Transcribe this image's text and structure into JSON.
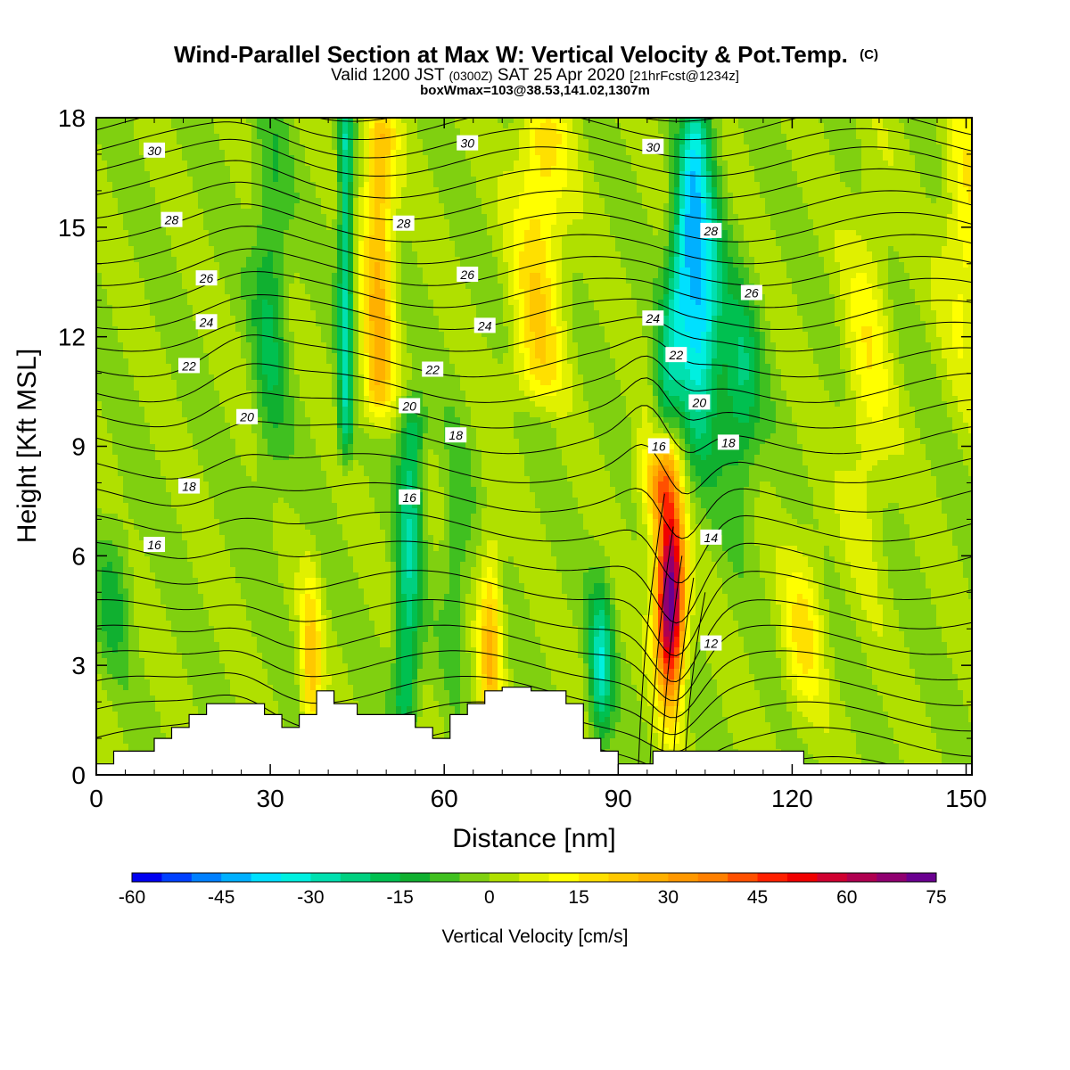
{
  "title": {
    "main": "Wind-Parallel Section at Max W: Vertical Velocity & Pot.Temp.",
    "copyright": "(C)",
    "valid_prefix": "Valid 1200 JST",
    "valid_z": "(0300Z)",
    "valid_date": "SAT 25 Apr 2020",
    "valid_fcst": "[21hrFcst@1234z]",
    "box_info": "boxWmax=103@38.53,141.02,1307m"
  },
  "chart_data": {
    "type": "heatmap",
    "xlabel": "Distance [nm]",
    "ylabel": "Height [Kft MSL]",
    "xlim": [
      0,
      151
    ],
    "ylim": [
      0,
      18
    ],
    "xticks": [
      0,
      30,
      60,
      90,
      120,
      150
    ],
    "yticks": [
      0,
      3,
      6,
      9,
      12,
      15,
      18
    ],
    "colorbar": {
      "title": "Vertical Velocity [cm/s]",
      "ticks": [
        -60,
        -45,
        -30,
        -15,
        0,
        15,
        30,
        45,
        60,
        75
      ],
      "levels": [
        -60,
        -55,
        -50,
        -45,
        -40,
        -35,
        -30,
        -25,
        -20,
        -15,
        -10,
        -5,
        0,
        5,
        10,
        15,
        20,
        25,
        30,
        35,
        40,
        45,
        50,
        55,
        60,
        65,
        70,
        75
      ],
      "colors": [
        "#0000f0",
        "#0040ff",
        "#0080ff",
        "#00b0ff",
        "#00e0ff",
        "#00f0e0",
        "#00e0b0",
        "#00d080",
        "#00c050",
        "#10b030",
        "#40c020",
        "#80d010",
        "#b0e000",
        "#e0f000",
        "#ffff00",
        "#ffe000",
        "#ffc800",
        "#ffb000",
        "#ff9800",
        "#ff8000",
        "#ff5000",
        "#ff2000",
        "#f00000",
        "#d00030",
        "#b00050",
        "#900070",
        "#6a0090"
      ]
    },
    "terrain_kft": {
      "x": [
        0,
        3,
        3,
        10,
        10,
        13,
        13,
        16,
        16,
        19,
        19,
        29,
        29,
        32,
        32,
        35,
        35,
        38,
        38,
        41,
        41,
        45,
        45,
        48,
        48,
        55,
        55,
        58,
        58,
        61,
        61,
        64,
        64,
        67,
        67,
        70,
        70,
        75,
        75,
        81,
        81,
        84,
        84,
        87,
        87,
        90,
        90,
        93,
        93,
        96,
        96,
        109,
        109,
        122,
        122,
        125,
        125,
        151
      ],
      "y": [
        0.3,
        0.3,
        0.65,
        0.65,
        1.0,
        1.0,
        1.3,
        1.3,
        1.65,
        1.65,
        1.95,
        1.95,
        1.65,
        1.65,
        1.3,
        1.3,
        1.65,
        1.65,
        2.3,
        2.3,
        1.95,
        1.95,
        1.65,
        1.65,
        1.65,
        1.65,
        1.3,
        1.3,
        1.0,
        1.0,
        1.65,
        1.65,
        1.95,
        1.95,
        2.3,
        2.3,
        2.4,
        2.4,
        2.3,
        2.3,
        1.95,
        1.95,
        1.0,
        1.0,
        0.65,
        0.65,
        0.3,
        0.3,
        0.3,
        0.3,
        0.65,
        0.65,
        0.65,
        0.65,
        0.3,
        0.3,
        0.3,
        0.3
      ]
    },
    "theta_labels": [
      {
        "text": "30",
        "x": 10,
        "y": 17.1
      },
      {
        "text": "30",
        "x": 64,
        "y": 17.3
      },
      {
        "text": "30",
        "x": 96,
        "y": 17.2
      },
      {
        "text": "28",
        "x": 13,
        "y": 15.2
      },
      {
        "text": "28",
        "x": 53,
        "y": 15.1
      },
      {
        "text": "28",
        "x": 106,
        "y": 14.9
      },
      {
        "text": "26",
        "x": 19,
        "y": 13.6
      },
      {
        "text": "26",
        "x": 64,
        "y": 13.7
      },
      {
        "text": "26",
        "x": 113,
        "y": 13.2
      },
      {
        "text": "24",
        "x": 19,
        "y": 12.4
      },
      {
        "text": "24",
        "x": 67,
        "y": 12.3
      },
      {
        "text": "24",
        "x": 96,
        "y": 12.5
      },
      {
        "text": "22",
        "x": 16,
        "y": 11.2
      },
      {
        "text": "22",
        "x": 58,
        "y": 11.1
      },
      {
        "text": "22",
        "x": 100,
        "y": 11.5
      },
      {
        "text": "20",
        "x": 26,
        "y": 9.8
      },
      {
        "text": "20",
        "x": 54,
        "y": 10.1
      },
      {
        "text": "20",
        "x": 104,
        "y": 10.2
      },
      {
        "text": "18",
        "x": 16,
        "y": 7.9
      },
      {
        "text": "18",
        "x": 62,
        "y": 9.3
      },
      {
        "text": "18",
        "x": 109,
        "y": 9.1
      },
      {
        "text": "16",
        "x": 10,
        "y": 6.3
      },
      {
        "text": "16",
        "x": 54,
        "y": 7.6
      },
      {
        "text": "16",
        "x": 97,
        "y": 9.0
      },
      {
        "text": "14",
        "x": 106,
        "y": 6.5
      },
      {
        "text": "12",
        "x": 106,
        "y": 3.6
      }
    ]
  }
}
